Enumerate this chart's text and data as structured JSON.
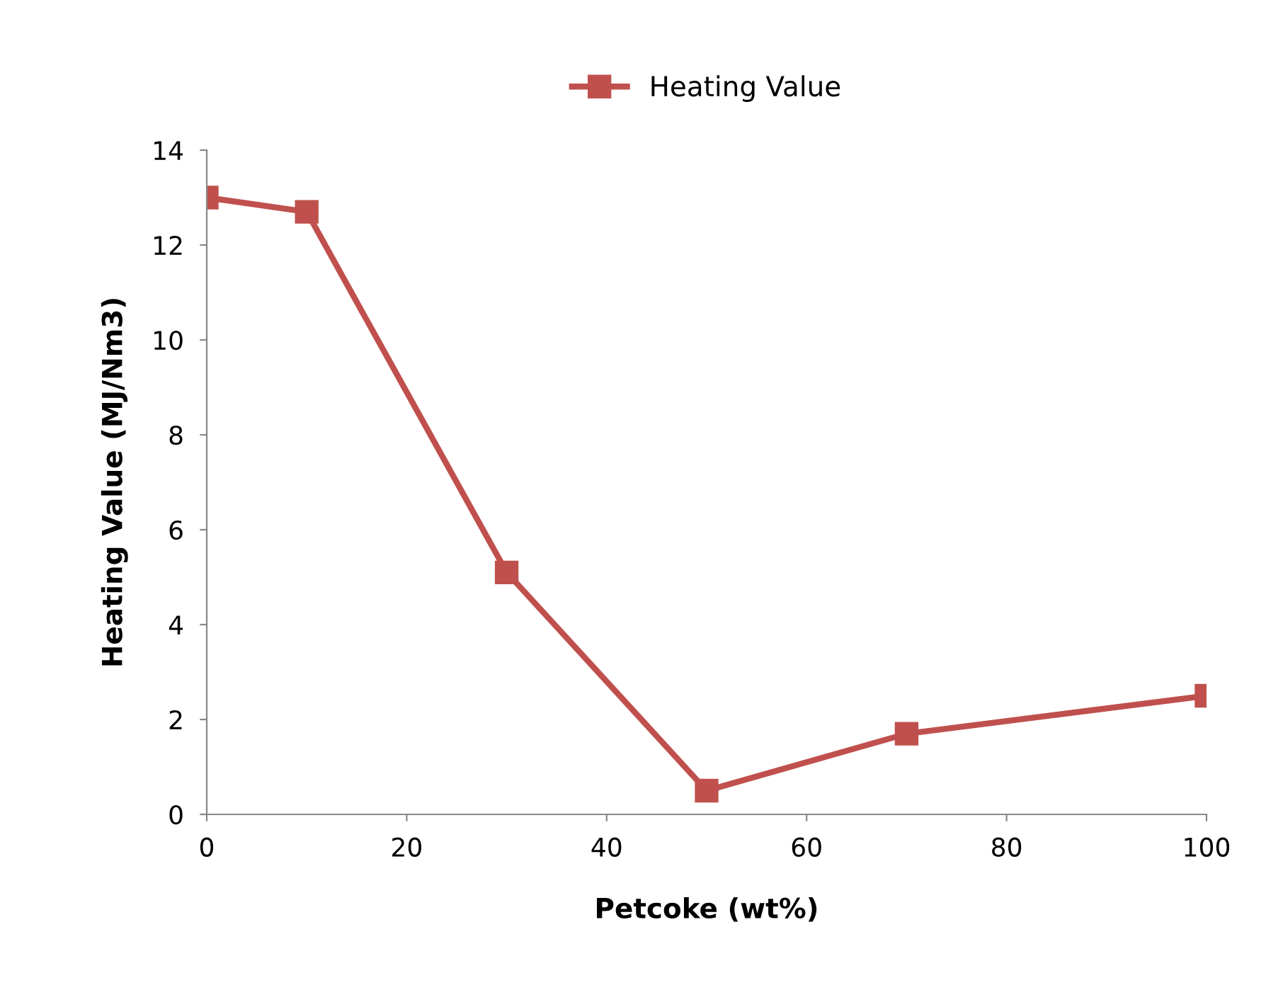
{
  "chart_data": {
    "type": "line",
    "xlabel": "Petcoke (wt%)",
    "ylabel": "Heating Value (MJ/Nm3)",
    "x": [
      0,
      10,
      30,
      50,
      70,
      100
    ],
    "series": [
      {
        "name": "Heating Value",
        "color": "#c0504d",
        "values": [
          13.0,
          12.7,
          5.1,
          0.5,
          1.7,
          2.5
        ]
      }
    ],
    "xlim": [
      0,
      100
    ],
    "xticks": [
      0,
      20,
      40,
      60,
      80,
      100
    ],
    "ylim": [
      0,
      14
    ],
    "yticks": [
      0,
      2,
      4,
      6,
      8,
      10,
      12,
      14
    ],
    "grid": false,
    "legend": "top",
    "marker": "square",
    "line_style": "solid"
  }
}
